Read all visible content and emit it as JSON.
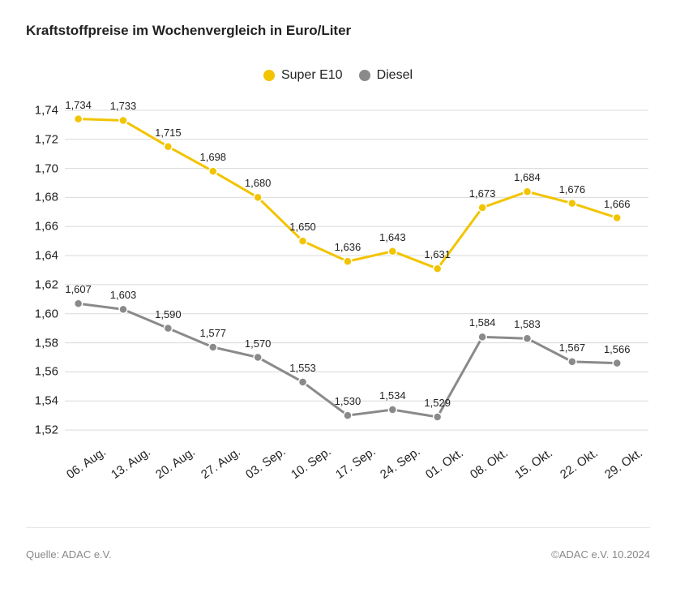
{
  "title": "Kraftstoffpreise im Wochenvergleich in Euro/Liter",
  "source": "Quelle: ADAC e.V.",
  "copyright": "©ADAC e.V. 10.2024",
  "chart": {
    "type": "line",
    "background_color": "#ffffff",
    "grid_color": "#d9d9d9",
    "title_fontsize": 17,
    "axis_label_fontsize": 15,
    "data_label_fontsize": 13,
    "line_width": 3,
    "marker_radius": 5,
    "marker_style": "circle",
    "marker_border_color": "#ffffff",
    "marker_border_width": 1.5,
    "decimal_separator": ",",
    "y_axis": {
      "min": 1.51,
      "max": 1.75,
      "tick_start": 1.52,
      "tick_step": 0.02,
      "tick_end": 1.74
    },
    "categories": [
      "06. Aug.",
      "13. Aug.",
      "20. Aug.",
      "27. Aug.",
      "03. Sep.",
      "10. Sep.",
      "17. Sep.",
      "24. Sep.",
      "01. Okt.",
      "08. Okt.",
      "15. Okt.",
      "22. Okt.",
      "29. Okt."
    ],
    "series": [
      {
        "name": "Super E10",
        "color": "#f2c400",
        "label_color": "#222222",
        "label_offset_y": -10,
        "values": [
          1.734,
          1.733,
          1.715,
          1.698,
          1.68,
          1.65,
          1.636,
          1.643,
          1.631,
          1.673,
          1.684,
          1.676,
          1.666
        ]
      },
      {
        "name": "Diesel",
        "color": "#8a8a8a",
        "label_color": "#222222",
        "label_offset_y": -10,
        "values": [
          1.607,
          1.603,
          1.59,
          1.577,
          1.57,
          1.553,
          1.53,
          1.534,
          1.529,
          1.584,
          1.583,
          1.567,
          1.566
        ]
      }
    ],
    "legend": {
      "position": "top-center",
      "marker_shape": "circle",
      "marker_size": 14
    }
  }
}
